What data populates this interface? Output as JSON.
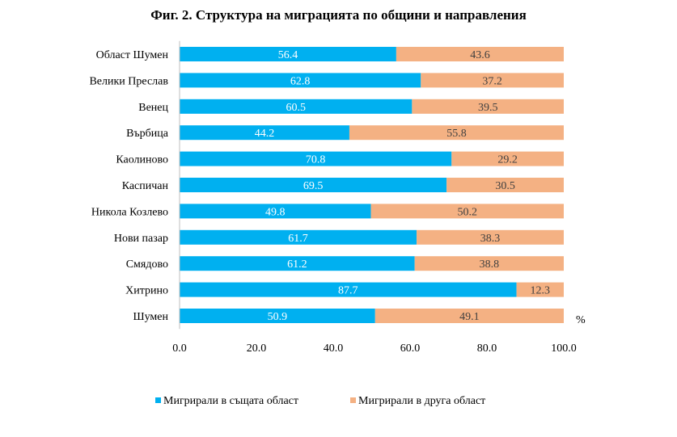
{
  "chart_data": {
    "type": "bar",
    "orientation": "horizontal",
    "stacked": true,
    "title": "Фиг. 2. Структура на миграцията по общини и направления",
    "unit_label": "%",
    "categories": [
      "Област Шумен",
      "Велики Преслав",
      "Венец",
      "Върбица",
      "Каолиново",
      "Каспичан",
      "Никола Козлево",
      "Нови пазар",
      "Смядово",
      "Хитрино",
      "Шумен"
    ],
    "series": [
      {
        "name": "Мигрирали в същата област",
        "color": "#00B0F0",
        "label_color": "#ffffff",
        "values": [
          56.4,
          62.8,
          60.5,
          44.2,
          70.8,
          69.5,
          49.8,
          61.7,
          61.2,
          87.7,
          50.9
        ],
        "value_labels": [
          "56.4",
          "62.8",
          "60.5",
          "44.2",
          "70.8",
          "69.5",
          "49.8",
          "61.7",
          "61.2",
          "87.7",
          "50.9"
        ]
      },
      {
        "name": "Мигрирали в друга област",
        "color": "#F4B183",
        "label_color": "#404040",
        "values": [
          43.6,
          37.2,
          39.5,
          55.8,
          29.2,
          30.5,
          50.2,
          38.3,
          38.8,
          12.3,
          49.1
        ],
        "value_labels": [
          "43.6",
          "37.2",
          "39.5",
          "55.8",
          "29.2",
          "30.5",
          "50.2",
          "38.3",
          "38.8",
          "12.3",
          "49.1"
        ]
      }
    ],
    "xlim": [
      0,
      100
    ],
    "x_ticks": [
      0,
      20,
      40,
      60,
      80,
      100
    ],
    "x_tick_labels": [
      "0.0",
      "20.0",
      "40.0",
      "60.0",
      "80.0",
      "100.0"
    ],
    "grid": false,
    "legend_position": "bottom"
  }
}
